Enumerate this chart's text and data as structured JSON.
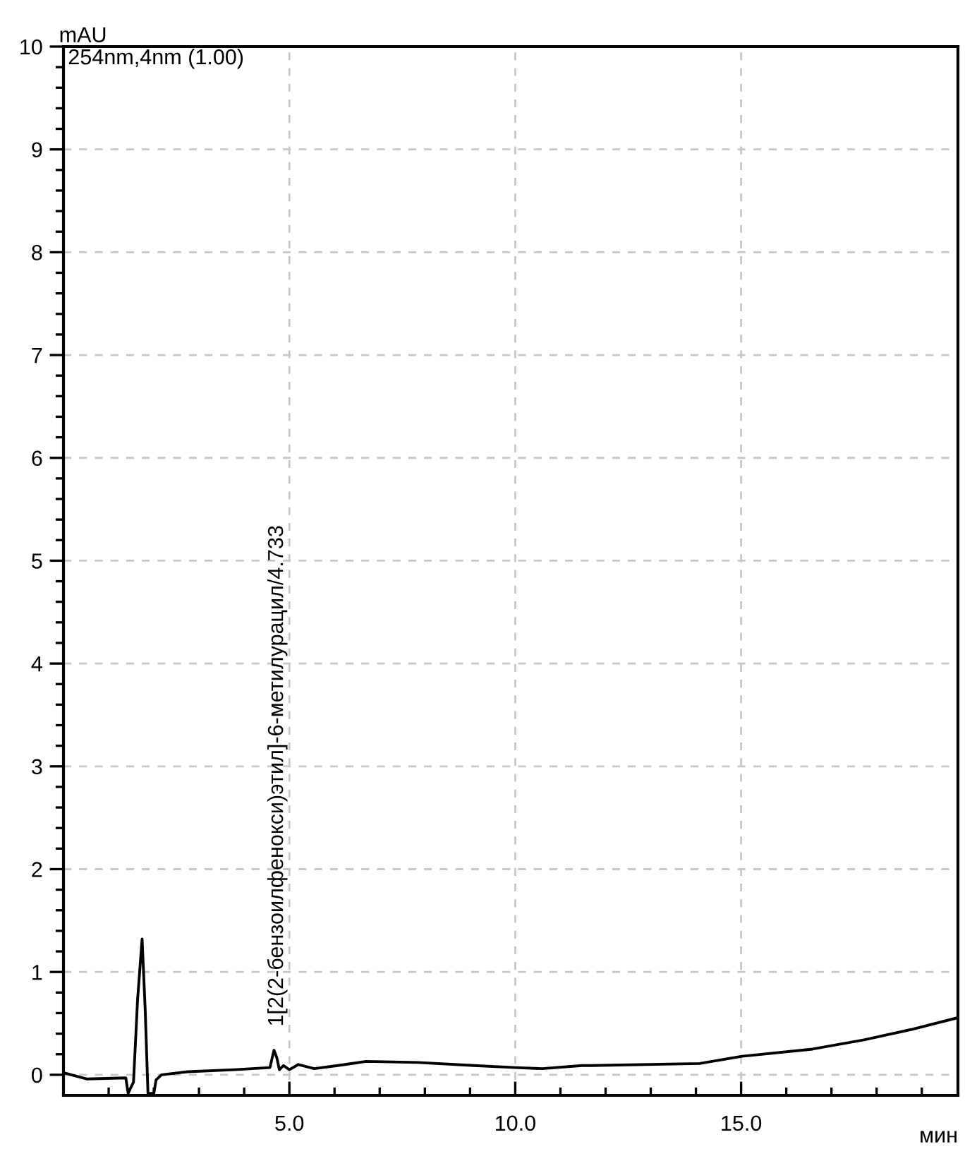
{
  "chart_data": {
    "type": "line",
    "xlabel": "мин",
    "ylabel": "mAU",
    "annotations": [
      "254nm,4nm (1.00)",
      {
        "text": "1[2(2-бензоилфенокси)этил]-6-метилурацил/4.733",
        "x": 4.733,
        "y": 0.24
      }
    ],
    "x": [
      0.0,
      0.51,
      1.38,
      1.43,
      1.55,
      1.64,
      1.74,
      1.81,
      1.87,
      2.0,
      2.05,
      2.17,
      2.75,
      3.79,
      4.57,
      4.66,
      4.72,
      4.78,
      4.87,
      5.0,
      5.2,
      5.55,
      6.07,
      6.7,
      7.84,
      9.09,
      10.0,
      10.6,
      11.48,
      11.69,
      14.08,
      15.02,
      16.58,
      17.72,
      18.76,
      19.75
    ],
    "series": [
      {
        "color": "#000000",
        "values": [
          0.02,
          -0.04,
          -0.03,
          -0.18,
          -0.07,
          0.73,
          1.32,
          0.62,
          -0.18,
          -0.18,
          -0.05,
          0.0,
          0.03,
          0.05,
          0.07,
          0.24,
          0.17,
          0.05,
          0.09,
          0.05,
          0.1,
          0.06,
          0.09,
          0.13,
          0.12,
          0.09,
          0.07,
          0.06,
          0.09,
          0.09,
          0.11,
          0.18,
          0.25,
          0.34,
          0.44,
          0.55
        ]
      }
    ],
    "xlim": [
      0,
      19.8
    ],
    "ylim": [
      -0.2,
      10
    ],
    "xticks": [
      {
        "value": 1,
        "label": null
      },
      {
        "value": 2,
        "label": null
      },
      {
        "value": 3,
        "label": null
      },
      {
        "value": 4,
        "label": null
      },
      {
        "value": 5,
        "label": "5.0"
      },
      {
        "value": 6,
        "label": null
      },
      {
        "value": 7,
        "label": null
      },
      {
        "value": 8,
        "label": null
      },
      {
        "value": 9,
        "label": null
      },
      {
        "value": 10,
        "label": "10.0"
      },
      {
        "value": 11,
        "label": null
      },
      {
        "value": 12,
        "label": null
      },
      {
        "value": 13,
        "label": null
      },
      {
        "value": 14,
        "label": null
      },
      {
        "value": 15,
        "label": "15.0"
      },
      {
        "value": 16,
        "label": null
      },
      {
        "value": 17,
        "label": null
      },
      {
        "value": 18,
        "label": null
      },
      {
        "value": 19,
        "label": null
      }
    ],
    "yticks": [
      0,
      1,
      2,
      3,
      4,
      5,
      6,
      7,
      8,
      9,
      10,
      {
        "value": 0.2,
        "label": null
      },
      {
        "value": 0.4,
        "label": null
      },
      {
        "value": 0.6,
        "label": null
      },
      {
        "value": 0.8,
        "label": null
      },
      {
        "value": 1.2,
        "label": null
      },
      {
        "value": 1.4,
        "label": null
      },
      {
        "value": 1.6,
        "label": null
      },
      {
        "value": 1.8,
        "label": null
      },
      {
        "value": 2.2,
        "label": null
      },
      {
        "value": 2.4,
        "label": null
      },
      {
        "value": 2.6,
        "label": null
      },
      {
        "value": 2.8,
        "label": null
      },
      {
        "value": 3.2,
        "label": null
      },
      {
        "value": 3.4,
        "label": null
      },
      {
        "value": 3.6,
        "label": null
      },
      {
        "value": 3.8,
        "label": null
      },
      {
        "value": 4.2,
        "label": null
      },
      {
        "value": 4.4,
        "label": null
      },
      {
        "value": 4.6,
        "label": null
      },
      {
        "value": 4.8,
        "label": null
      },
      {
        "value": 5.2,
        "label": null
      },
      {
        "value": 5.4,
        "label": null
      },
      {
        "value": 5.6,
        "label": null
      },
      {
        "value": 5.8,
        "label": null
      },
      {
        "value": 6.2,
        "label": null
      },
      {
        "value": 6.4,
        "label": null
      },
      {
        "value": 6.6,
        "label": null
      },
      {
        "value": 6.8,
        "label": null
      },
      {
        "value": 7.2,
        "label": null
      },
      {
        "value": 7.4,
        "label": null
      },
      {
        "value": 7.6,
        "label": null
      },
      {
        "value": 7.8,
        "label": null
      },
      {
        "value": 8.2,
        "label": null
      },
      {
        "value": 8.4,
        "label": null
      },
      {
        "value": 8.6,
        "label": null
      },
      {
        "value": 8.8,
        "label": null
      },
      {
        "value": 9.2,
        "label": null
      },
      {
        "value": 9.4,
        "label": null
      },
      {
        "value": 9.6,
        "label": null
      },
      {
        "value": 9.8,
        "label": null
      }
    ],
    "grid": true,
    "line_style": "solid",
    "marker": "none"
  }
}
